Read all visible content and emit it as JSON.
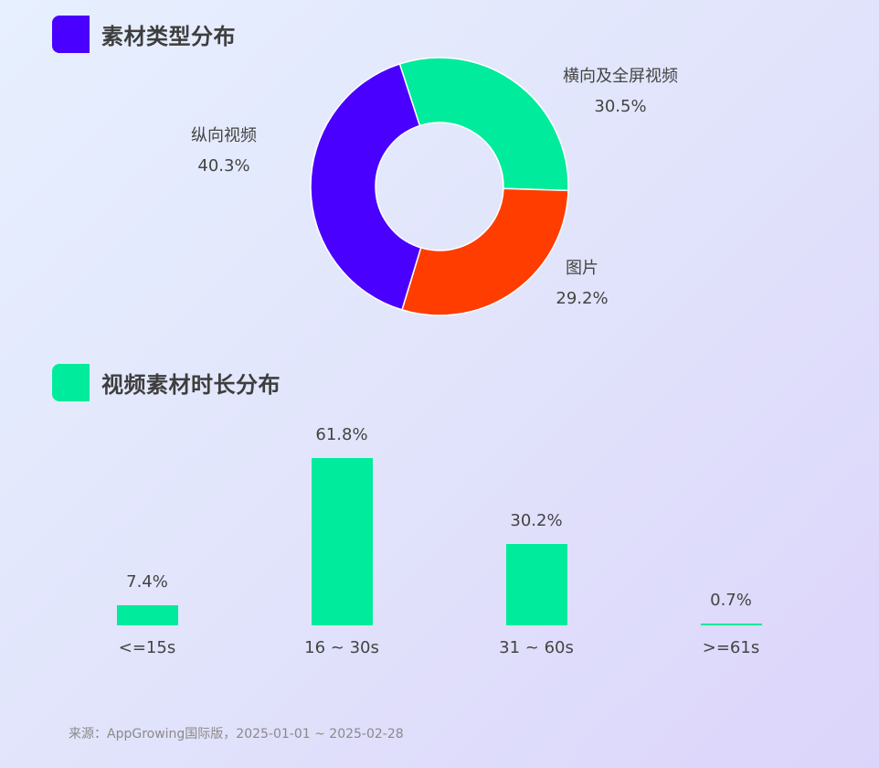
{
  "sections": [
    {
      "title": "素材类型分布",
      "marker_color": "#4a00ff"
    },
    {
      "title": "视频素材时长分布",
      "marker_color": "#00eb9b"
    }
  ],
  "donut": {
    "labels": [
      {
        "name": "横向及全屏视频",
        "pct": "30.5%"
      },
      {
        "name": "图片",
        "pct": "29.2%"
      },
      {
        "name": "纵向视频",
        "pct": "40.3%"
      }
    ]
  },
  "bars": {
    "items": [
      {
        "category": "<=15s",
        "label": "7.4%"
      },
      {
        "category": "16 ~ 30s",
        "label": "61.8%"
      },
      {
        "category": "31 ~ 60s",
        "label": "30.2%"
      },
      {
        "category": ">=61s",
        "label": "0.7%"
      }
    ]
  },
  "footer": {
    "source": "来源：AppGrowing国际版，2025-01-01 ~ 2025-02-28"
  },
  "chart_data": [
    {
      "type": "pie",
      "title": "素材类型分布",
      "variant": "donut",
      "categories": [
        "横向及全屏视频",
        "图片",
        "纵向视频"
      ],
      "values": [
        30.5,
        29.2,
        40.3
      ],
      "colors": [
        "#00eb9b",
        "#ff3d00",
        "#4a00ff"
      ],
      "unit": "%",
      "legend": "none (outside labels)"
    },
    {
      "type": "bar",
      "title": "视频素材时长分布",
      "categories": [
        "<=15s",
        "16 ~ 30s",
        "31 ~ 60s",
        ">=61s"
      ],
      "values": [
        7.4,
        61.8,
        30.2,
        0.7
      ],
      "colors": [
        "#00eb9b"
      ],
      "unit": "%",
      "xlabel": "",
      "ylabel": "",
      "grid": false,
      "yaxis_visible": false
    }
  ]
}
